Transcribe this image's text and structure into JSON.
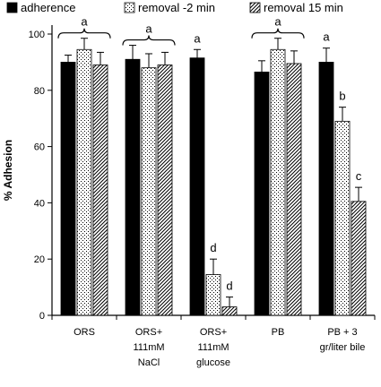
{
  "chart_data": {
    "type": "bar",
    "title": "",
    "xlabel": "",
    "ylabel": "% Adhesion",
    "ylim": [
      0,
      100
    ],
    "yticks": [
      0,
      20,
      40,
      60,
      80,
      100
    ],
    "grid": false,
    "legend_position": "top",
    "categories": [
      [
        "ORS"
      ],
      [
        "ORS+",
        "111mM",
        "NaCl"
      ],
      [
        "ORS+",
        "111mM",
        "glucose"
      ],
      [
        "PB"
      ],
      [
        "PB + 3",
        "gr/liter bile"
      ]
    ],
    "series": [
      {
        "name": "adherence",
        "fill": "#000000",
        "pattern": "solid",
        "values": [
          90,
          91,
          91.5,
          86.5,
          90
        ],
        "errors": [
          2.5,
          5,
          3,
          4,
          5
        ]
      },
      {
        "name": "removal -2 min",
        "fill": "#ffffff",
        "pattern": "dots",
        "values": [
          94.5,
          88,
          14.5,
          94.5,
          69
        ],
        "errors": [
          4,
          5,
          5.5,
          4,
          5
        ]
      },
      {
        "name": "removal 15 min",
        "fill": "#ffffff",
        "pattern": "diagonal",
        "values": [
          89,
          89,
          3,
          89.5,
          40.5
        ],
        "errors": [
          4.5,
          4.5,
          3.5,
          4.5,
          5
        ]
      }
    ],
    "annotations": [
      {
        "text": "a",
        "group": 0,
        "series": "all",
        "brace": true
      },
      {
        "text": "a",
        "group": 1,
        "series": "all",
        "brace": true
      },
      {
        "text": "a",
        "group": 2,
        "series": 0,
        "brace": false
      },
      {
        "text": "d",
        "group": 2,
        "series": 1,
        "brace": false
      },
      {
        "text": "d",
        "group": 2,
        "series": 2,
        "brace": false
      },
      {
        "text": "a",
        "group": 3,
        "series": "all",
        "brace": true
      },
      {
        "text": "a",
        "group": 4,
        "series": 0,
        "brace": false
      },
      {
        "text": "b",
        "group": 4,
        "series": 1,
        "brace": false
      },
      {
        "text": "c",
        "group": 4,
        "series": 2,
        "brace": false
      }
    ]
  }
}
